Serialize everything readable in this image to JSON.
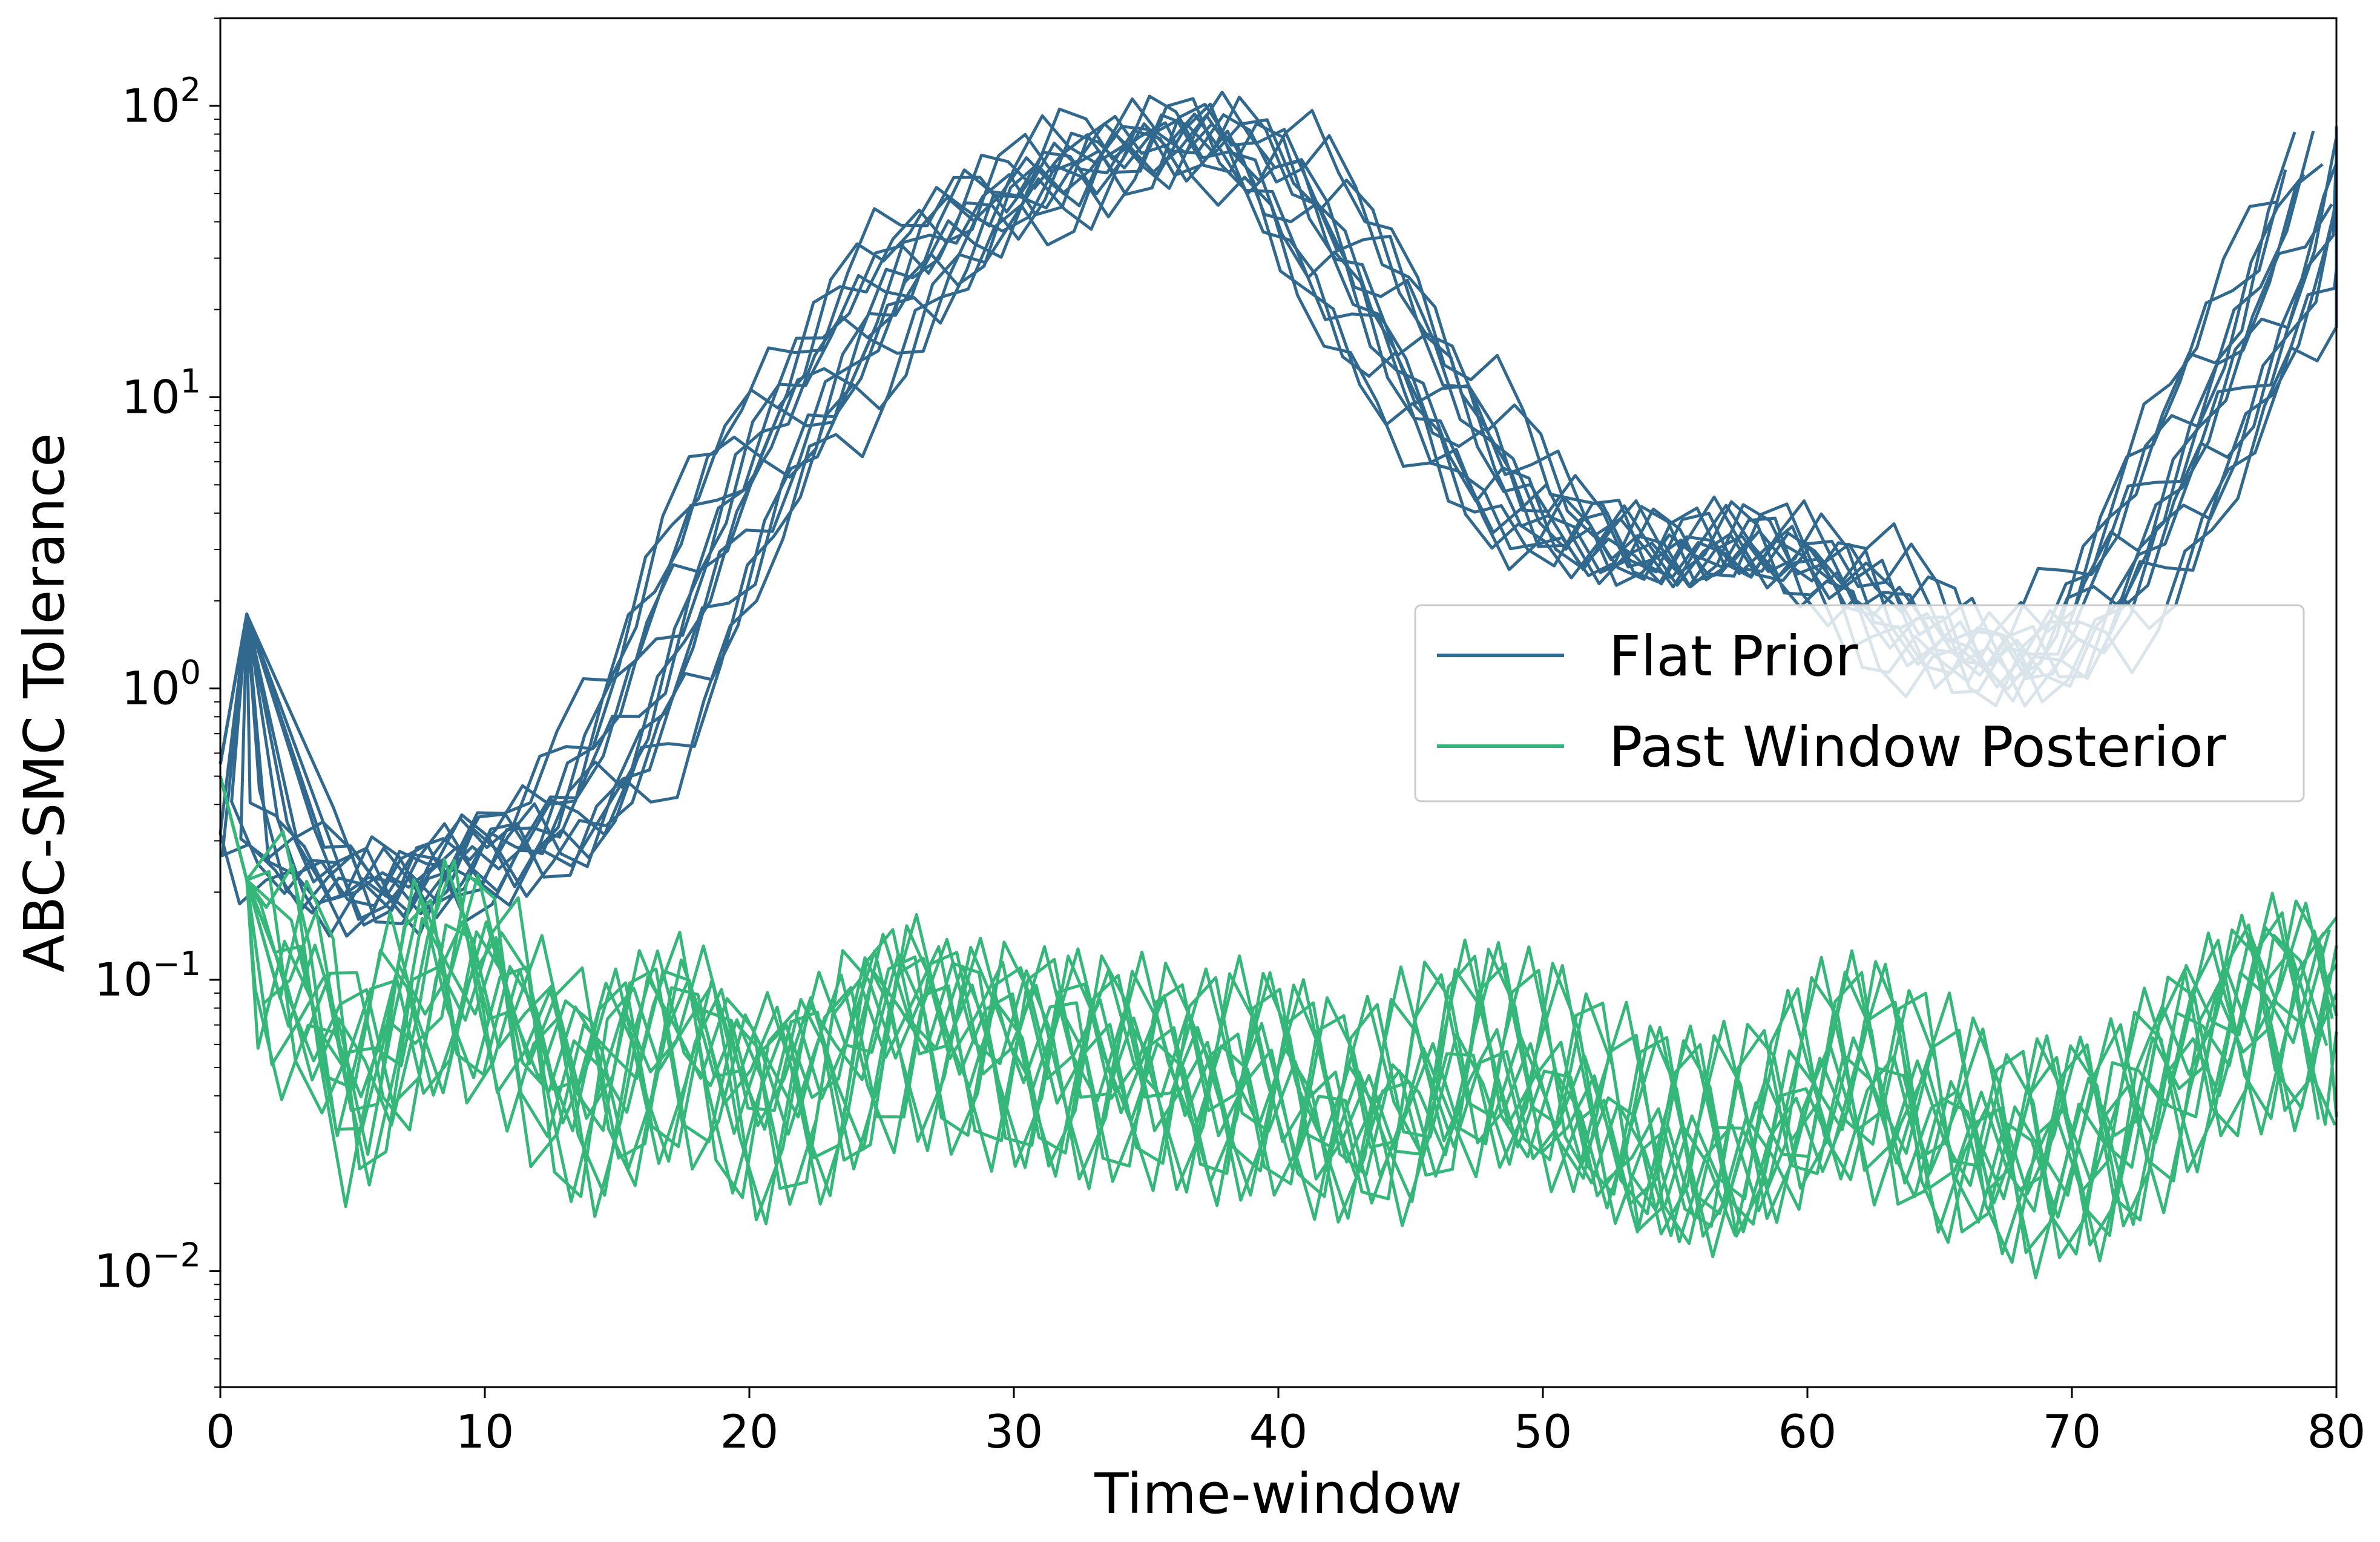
{
  "chart_data": {
    "type": "line",
    "title": "",
    "xlabel": "Time-window",
    "ylabel": "ABC-SMC Tolerance",
    "xlim": [
      0,
      80
    ],
    "ylim": [
      0.004,
      200
    ],
    "yscale": "log",
    "grid": false,
    "legend_position": "center-right",
    "x_ticks": [
      "0",
      "10",
      "20",
      "30",
      "40",
      "50",
      "60",
      "70",
      "80"
    ],
    "y_ticks": [
      {
        "value": 0.01,
        "base": "10",
        "exp": "−2"
      },
      {
        "value": 0.1,
        "base": "10",
        "exp": "−1"
      },
      {
        "value": 1,
        "base": "10",
        "exp": "0"
      },
      {
        "value": 10,
        "base": "10",
        "exp": "1"
      },
      {
        "value": 100,
        "base": "10",
        "exp": "2"
      }
    ],
    "runs_per_series": 14,
    "series": [
      {
        "name": "Flat Prior",
        "color": "#31688e",
        "x": [
          0,
          1,
          2,
          3,
          4,
          5,
          6,
          7,
          8,
          9,
          10,
          11,
          12,
          13,
          14,
          15,
          16,
          17,
          18,
          19,
          20,
          21,
          22,
          23,
          24,
          25,
          26,
          27,
          28,
          29,
          30,
          31,
          32,
          33,
          34,
          35,
          36,
          37,
          38,
          39,
          40,
          41,
          42,
          43,
          44,
          45,
          46,
          47,
          48,
          49,
          50,
          51,
          52,
          53,
          54,
          55,
          56,
          57,
          58,
          59,
          60,
          61,
          62,
          63,
          64,
          65,
          66,
          67,
          68,
          69,
          70,
          71,
          72,
          73,
          74,
          75,
          76,
          77,
          78,
          79,
          80
        ],
        "values": [
          0.55,
          1.8,
          0.35,
          0.26,
          0.22,
          0.2,
          0.2,
          0.2,
          0.23,
          0.25,
          0.27,
          0.29,
          0.3,
          0.35,
          0.45,
          0.6,
          0.9,
          1.4,
          2.2,
          3.3,
          5,
          7,
          9,
          12,
          16,
          21,
          26,
          32,
          38,
          44,
          50,
          55,
          60,
          65,
          70,
          75,
          78,
          80,
          78,
          70,
          58,
          45,
          33,
          25,
          18,
          13,
          10,
          7.5,
          5.5,
          4.5,
          3.8,
          3.4,
          3.2,
          3,
          2.9,
          2.9,
          3,
          3.1,
          3.1,
          3,
          2.8,
          2.5,
          2.2,
          1.9,
          1.6,
          1.4,
          1.3,
          1.2,
          1.2,
          1.3,
          1.5,
          1.9,
          2.6,
          3.6,
          5.2,
          7.5,
          11,
          16,
          24,
          40,
          65
        ]
      },
      {
        "name": "Past Window Posterior",
        "color": "#35b779",
        "x": [
          0,
          1,
          2,
          3,
          4,
          5,
          6,
          7,
          8,
          9,
          10,
          11,
          12,
          13,
          14,
          15,
          16,
          17,
          18,
          19,
          20,
          21,
          22,
          23,
          24,
          25,
          26,
          27,
          28,
          29,
          30,
          31,
          32,
          33,
          34,
          35,
          36,
          37,
          38,
          39,
          40,
          41,
          42,
          43,
          44,
          45,
          46,
          47,
          48,
          49,
          50,
          51,
          52,
          53,
          54,
          55,
          56,
          57,
          58,
          59,
          60,
          61,
          62,
          63,
          64,
          65,
          66,
          67,
          68,
          69,
          70,
          71,
          72,
          73,
          74,
          75,
          76,
          77,
          78,
          79,
          80
        ],
        "values": [
          0.5,
          0.22,
          0.12,
          0.1,
          0.07,
          0.042,
          0.05,
          0.075,
          0.1,
          0.11,
          0.1,
          0.08,
          0.06,
          0.045,
          0.04,
          0.05,
          0.06,
          0.065,
          0.06,
          0.05,
          0.04,
          0.04,
          0.045,
          0.05,
          0.06,
          0.07,
          0.075,
          0.07,
          0.065,
          0.06,
          0.06,
          0.058,
          0.055,
          0.05,
          0.05,
          0.05,
          0.048,
          0.045,
          0.045,
          0.045,
          0.042,
          0.038,
          0.035,
          0.034,
          0.035,
          0.04,
          0.045,
          0.05,
          0.05,
          0.048,
          0.045,
          0.04,
          0.035,
          0.03,
          0.027,
          0.025,
          0.025,
          0.026,
          0.028,
          0.033,
          0.04,
          0.045,
          0.045,
          0.042,
          0.038,
          0.033,
          0.03,
          0.027,
          0.025,
          0.025,
          0.026,
          0.028,
          0.033,
          0.04,
          0.05,
          0.06,
          0.07,
          0.08,
          0.085,
          0.085,
          0.08
        ]
      }
    ]
  }
}
